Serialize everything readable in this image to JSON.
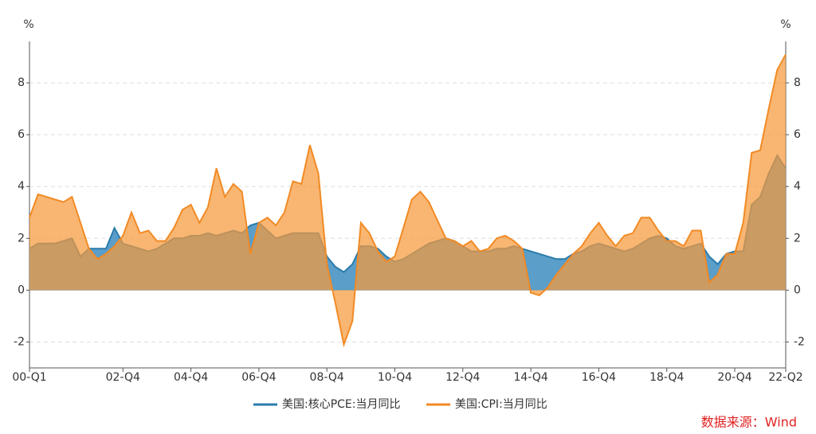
{
  "chart_data": {
    "type": "area",
    "y_label": "%",
    "y2_label": "%",
    "categories": [
      "00-Q1",
      null,
      null,
      null,
      null,
      null,
      null,
      null,
      null,
      null,
      null,
      "02-Q4",
      null,
      null,
      null,
      null,
      null,
      null,
      null,
      "04-Q4",
      null,
      null,
      null,
      null,
      null,
      null,
      null,
      "06-Q4",
      null,
      null,
      null,
      null,
      null,
      null,
      null,
      "08-Q4",
      null,
      null,
      null,
      null,
      null,
      null,
      null,
      "10-Q4",
      null,
      null,
      null,
      null,
      null,
      null,
      null,
      "12-Q4",
      null,
      null,
      null,
      null,
      null,
      null,
      null,
      "14-Q4",
      null,
      null,
      null,
      null,
      null,
      null,
      null,
      "16-Q4",
      null,
      null,
      null,
      null,
      null,
      null,
      null,
      "18-Q4",
      null,
      null,
      null,
      null,
      null,
      null,
      null,
      "20-Q4",
      null,
      null,
      null,
      null,
      null,
      "22-Q2"
    ],
    "series": [
      {
        "name": "美国:核心PCE:当月同比",
        "color": "#2b7bab",
        "fill": "#3d8dbf",
        "values": [
          1.6,
          1.8,
          1.8,
          1.8,
          1.9,
          2.0,
          1.3,
          1.6,
          1.6,
          1.6,
          2.4,
          1.8,
          1.7,
          1.6,
          1.5,
          1.6,
          1.8,
          2.0,
          2.0,
          2.1,
          2.1,
          2.2,
          2.1,
          2.2,
          2.3,
          2.2,
          2.5,
          2.6,
          2.3,
          2.0,
          2.1,
          2.2,
          2.2,
          2.2,
          2.2,
          1.3,
          0.9,
          0.7,
          1.0,
          1.7,
          1.7,
          1.6,
          1.3,
          1.1,
          1.2,
          1.4,
          1.6,
          1.8,
          1.9,
          2.0,
          1.9,
          1.7,
          1.5,
          1.5,
          1.5,
          1.6,
          1.6,
          1.7,
          1.6,
          1.5,
          1.4,
          1.3,
          1.2,
          1.2,
          1.4,
          1.5,
          1.7,
          1.8,
          1.7,
          1.6,
          1.5,
          1.6,
          1.8,
          2.0,
          2.1,
          2.0,
          1.7,
          1.6,
          1.7,
          1.8,
          1.3,
          1.0,
          1.4,
          1.5,
          1.5,
          3.3,
          3.6,
          4.5,
          5.2,
          4.7
        ]
      },
      {
        "name": "美国:CPI:当月同比",
        "color": "#f28a24",
        "fill": "#f59a3c",
        "values": [
          2.8,
          3.7,
          3.6,
          3.5,
          3.4,
          3.6,
          2.6,
          1.6,
          1.2,
          1.4,
          1.7,
          2.1,
          3.0,
          2.2,
          2.3,
          1.9,
          1.9,
          2.4,
          3.1,
          3.3,
          2.6,
          3.2,
          4.7,
          3.6,
          4.1,
          3.8,
          1.4,
          2.6,
          2.8,
          2.5,
          3.0,
          4.2,
          4.1,
          5.6,
          4.5,
          1.0,
          -0.5,
          -2.1,
          -1.2,
          2.6,
          2.2,
          1.5,
          1.1,
          1.3,
          2.4,
          3.5,
          3.8,
          3.4,
          2.7,
          2.0,
          1.9,
          1.7,
          1.9,
          1.5,
          1.6,
          2.0,
          2.1,
          1.9,
          1.6,
          -0.1,
          -0.2,
          0.1,
          0.6,
          1.0,
          1.4,
          1.7,
          2.2,
          2.6,
          2.1,
          1.7,
          2.1,
          2.2,
          2.8,
          2.8,
          2.3,
          1.9,
          1.9,
          1.7,
          2.3,
          2.3,
          0.3,
          0.6,
          1.4,
          1.4,
          2.6,
          5.3,
          5.4,
          7.0,
          8.5,
          9.1
        ]
      }
    ],
    "ylim": [
      -3,
      9.6
    ],
    "yticks": [
      -2,
      0,
      2,
      4,
      6,
      8
    ],
    "y2lim": [
      -3,
      9.6
    ],
    "y2ticks": [
      -2,
      0,
      2,
      4,
      6,
      8
    ],
    "grid": true,
    "legend": "bottom",
    "source": "数据来源：Wind"
  }
}
